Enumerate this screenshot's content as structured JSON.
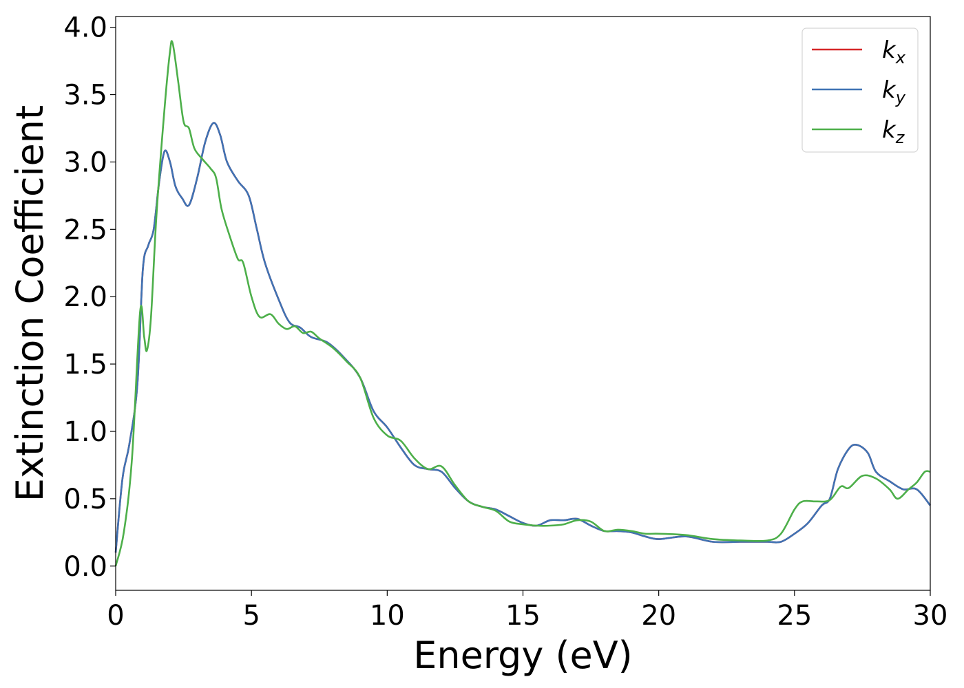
{
  "chart_data": {
    "type": "line",
    "title": "",
    "xlabel": "Energy (eV)",
    "ylabel": "Extinction Coefficient",
    "xlim": [
      0,
      30
    ],
    "ylim": [
      -0.18,
      4.08
    ],
    "xticks": [
      0,
      5,
      10,
      15,
      20,
      25,
      30
    ],
    "xtick_labels": [
      "0",
      "5",
      "10",
      "15",
      "20",
      "25",
      "30"
    ],
    "yticks": [
      0.0,
      0.5,
      1.0,
      1.5,
      2.0,
      2.5,
      3.0,
      3.5,
      4.0
    ],
    "ytick_labels": [
      "0.0",
      "0.5",
      "1.0",
      "1.5",
      "2.0",
      "2.5",
      "3.0",
      "3.5",
      "4.0"
    ],
    "grid": false,
    "legend_position": "top-right",
    "series": [
      {
        "name": "k_x",
        "legend": {
          "base": "k",
          "sub": "x"
        },
        "color": "#d62728",
        "points": [
          [
            0,
            0.1
          ],
          [
            0.25,
            0.65
          ],
          [
            0.5,
            0.9
          ],
          [
            0.8,
            1.35
          ],
          [
            1.0,
            2.2
          ],
          [
            1.2,
            2.38
          ],
          [
            1.4,
            2.5
          ],
          [
            1.6,
            2.85
          ],
          [
            1.8,
            3.08
          ],
          [
            2.0,
            3.0
          ],
          [
            2.2,
            2.82
          ],
          [
            2.45,
            2.73
          ],
          [
            2.7,
            2.68
          ],
          [
            3.0,
            2.88
          ],
          [
            3.3,
            3.15
          ],
          [
            3.6,
            3.29
          ],
          [
            3.85,
            3.2
          ],
          [
            4.1,
            3.0
          ],
          [
            4.5,
            2.86
          ],
          [
            4.9,
            2.75
          ],
          [
            5.2,
            2.5
          ],
          [
            5.5,
            2.25
          ],
          [
            6.0,
            1.98
          ],
          [
            6.4,
            1.81
          ],
          [
            6.8,
            1.77
          ],
          [
            7.2,
            1.7
          ],
          [
            7.8,
            1.66
          ],
          [
            8.4,
            1.55
          ],
          [
            9.0,
            1.4
          ],
          [
            9.5,
            1.15
          ],
          [
            10.0,
            1.03
          ],
          [
            10.5,
            0.88
          ],
          [
            11.0,
            0.75
          ],
          [
            11.5,
            0.72
          ],
          [
            12.0,
            0.7
          ],
          [
            12.5,
            0.58
          ],
          [
            13.0,
            0.48
          ],
          [
            13.5,
            0.44
          ],
          [
            14.0,
            0.42
          ],
          [
            14.5,
            0.37
          ],
          [
            15.0,
            0.32
          ],
          [
            15.5,
            0.3
          ],
          [
            16.0,
            0.34
          ],
          [
            16.5,
            0.34
          ],
          [
            17.0,
            0.35
          ],
          [
            17.5,
            0.3
          ],
          [
            18.0,
            0.26
          ],
          [
            18.5,
            0.26
          ],
          [
            19.0,
            0.25
          ],
          [
            19.5,
            0.22
          ],
          [
            20.0,
            0.2
          ],
          [
            21.0,
            0.22
          ],
          [
            22.0,
            0.18
          ],
          [
            23.0,
            0.18
          ],
          [
            24.0,
            0.18
          ],
          [
            24.5,
            0.18
          ],
          [
            25.0,
            0.24
          ],
          [
            25.5,
            0.32
          ],
          [
            26.0,
            0.45
          ],
          [
            26.3,
            0.5
          ],
          [
            26.6,
            0.72
          ],
          [
            27.0,
            0.87
          ],
          [
            27.3,
            0.9
          ],
          [
            27.7,
            0.84
          ],
          [
            28.0,
            0.7
          ],
          [
            28.5,
            0.63
          ],
          [
            29.0,
            0.57
          ],
          [
            29.5,
            0.57
          ],
          [
            30.0,
            0.45
          ]
        ]
      },
      {
        "name": "k_y",
        "legend": {
          "base": "k",
          "sub": "y"
        },
        "color": "#3f73b4",
        "points": [
          [
            0,
            0.1
          ],
          [
            0.25,
            0.65
          ],
          [
            0.5,
            0.9
          ],
          [
            0.8,
            1.35
          ],
          [
            1.0,
            2.2
          ],
          [
            1.2,
            2.38
          ],
          [
            1.4,
            2.5
          ],
          [
            1.6,
            2.85
          ],
          [
            1.8,
            3.08
          ],
          [
            2.0,
            3.0
          ],
          [
            2.2,
            2.82
          ],
          [
            2.45,
            2.73
          ],
          [
            2.7,
            2.68
          ],
          [
            3.0,
            2.88
          ],
          [
            3.3,
            3.15
          ],
          [
            3.6,
            3.29
          ],
          [
            3.85,
            3.2
          ],
          [
            4.1,
            3.0
          ],
          [
            4.5,
            2.86
          ],
          [
            4.9,
            2.75
          ],
          [
            5.2,
            2.5
          ],
          [
            5.5,
            2.25
          ],
          [
            6.0,
            1.98
          ],
          [
            6.4,
            1.81
          ],
          [
            6.8,
            1.77
          ],
          [
            7.2,
            1.7
          ],
          [
            7.8,
            1.66
          ],
          [
            8.4,
            1.55
          ],
          [
            9.0,
            1.4
          ],
          [
            9.5,
            1.15
          ],
          [
            10.0,
            1.03
          ],
          [
            10.5,
            0.88
          ],
          [
            11.0,
            0.75
          ],
          [
            11.5,
            0.72
          ],
          [
            12.0,
            0.7
          ],
          [
            12.5,
            0.58
          ],
          [
            13.0,
            0.48
          ],
          [
            13.5,
            0.44
          ],
          [
            14.0,
            0.42
          ],
          [
            14.5,
            0.37
          ],
          [
            15.0,
            0.32
          ],
          [
            15.5,
            0.3
          ],
          [
            16.0,
            0.34
          ],
          [
            16.5,
            0.34
          ],
          [
            17.0,
            0.35
          ],
          [
            17.5,
            0.3
          ],
          [
            18.0,
            0.26
          ],
          [
            18.5,
            0.26
          ],
          [
            19.0,
            0.25
          ],
          [
            19.5,
            0.22
          ],
          [
            20.0,
            0.2
          ],
          [
            21.0,
            0.22
          ],
          [
            22.0,
            0.18
          ],
          [
            23.0,
            0.18
          ],
          [
            24.0,
            0.18
          ],
          [
            24.5,
            0.18
          ],
          [
            25.0,
            0.24
          ],
          [
            25.5,
            0.32
          ],
          [
            26.0,
            0.45
          ],
          [
            26.3,
            0.5
          ],
          [
            26.6,
            0.72
          ],
          [
            27.0,
            0.87
          ],
          [
            27.3,
            0.9
          ],
          [
            27.7,
            0.84
          ],
          [
            28.0,
            0.7
          ],
          [
            28.5,
            0.63
          ],
          [
            29.0,
            0.57
          ],
          [
            29.5,
            0.57
          ],
          [
            30.0,
            0.45
          ]
        ]
      },
      {
        "name": "k_z",
        "legend": {
          "base": "k",
          "sub": "z"
        },
        "color": "#4daf4a",
        "points": [
          [
            0,
            0.0
          ],
          [
            0.3,
            0.25
          ],
          [
            0.6,
            0.8
          ],
          [
            0.9,
            1.89
          ],
          [
            1.05,
            1.7
          ],
          [
            1.15,
            1.6
          ],
          [
            1.3,
            1.85
          ],
          [
            1.5,
            2.6
          ],
          [
            1.8,
            3.4
          ],
          [
            2.0,
            3.82
          ],
          [
            2.1,
            3.88
          ],
          [
            2.3,
            3.6
          ],
          [
            2.5,
            3.3
          ],
          [
            2.7,
            3.25
          ],
          [
            2.9,
            3.1
          ],
          [
            3.2,
            3.02
          ],
          [
            3.5,
            2.95
          ],
          [
            3.7,
            2.88
          ],
          [
            3.9,
            2.65
          ],
          [
            4.2,
            2.45
          ],
          [
            4.5,
            2.28
          ],
          [
            4.7,
            2.25
          ],
          [
            5.0,
            2.0
          ],
          [
            5.3,
            1.85
          ],
          [
            5.7,
            1.87
          ],
          [
            6.0,
            1.8
          ],
          [
            6.3,
            1.76
          ],
          [
            6.6,
            1.78
          ],
          [
            6.9,
            1.73
          ],
          [
            7.2,
            1.74
          ],
          [
            7.5,
            1.69
          ],
          [
            8.0,
            1.62
          ],
          [
            8.5,
            1.52
          ],
          [
            9.0,
            1.4
          ],
          [
            9.5,
            1.1
          ],
          [
            10.0,
            0.97
          ],
          [
            10.5,
            0.93
          ],
          [
            11.0,
            0.8
          ],
          [
            11.5,
            0.72
          ],
          [
            12.0,
            0.74
          ],
          [
            12.5,
            0.6
          ],
          [
            13.0,
            0.48
          ],
          [
            13.5,
            0.44
          ],
          [
            14.0,
            0.41
          ],
          [
            14.5,
            0.33
          ],
          [
            15.0,
            0.31
          ],
          [
            15.5,
            0.3
          ],
          [
            16.0,
            0.3
          ],
          [
            16.5,
            0.31
          ],
          [
            17.0,
            0.34
          ],
          [
            17.5,
            0.33
          ],
          [
            18.0,
            0.26
          ],
          [
            18.5,
            0.27
          ],
          [
            19.0,
            0.26
          ],
          [
            19.5,
            0.24
          ],
          [
            20.0,
            0.24
          ],
          [
            21.0,
            0.23
          ],
          [
            22.0,
            0.2
          ],
          [
            23.0,
            0.19
          ],
          [
            24.0,
            0.19
          ],
          [
            24.5,
            0.24
          ],
          [
            25.0,
            0.42
          ],
          [
            25.3,
            0.48
          ],
          [
            25.8,
            0.48
          ],
          [
            26.3,
            0.49
          ],
          [
            26.7,
            0.59
          ],
          [
            27.0,
            0.58
          ],
          [
            27.5,
            0.67
          ],
          [
            28.0,
            0.65
          ],
          [
            28.5,
            0.57
          ],
          [
            28.8,
            0.5
          ],
          [
            29.2,
            0.57
          ],
          [
            29.5,
            0.62
          ],
          [
            29.8,
            0.7
          ],
          [
            30.0,
            0.7
          ]
        ]
      }
    ]
  }
}
